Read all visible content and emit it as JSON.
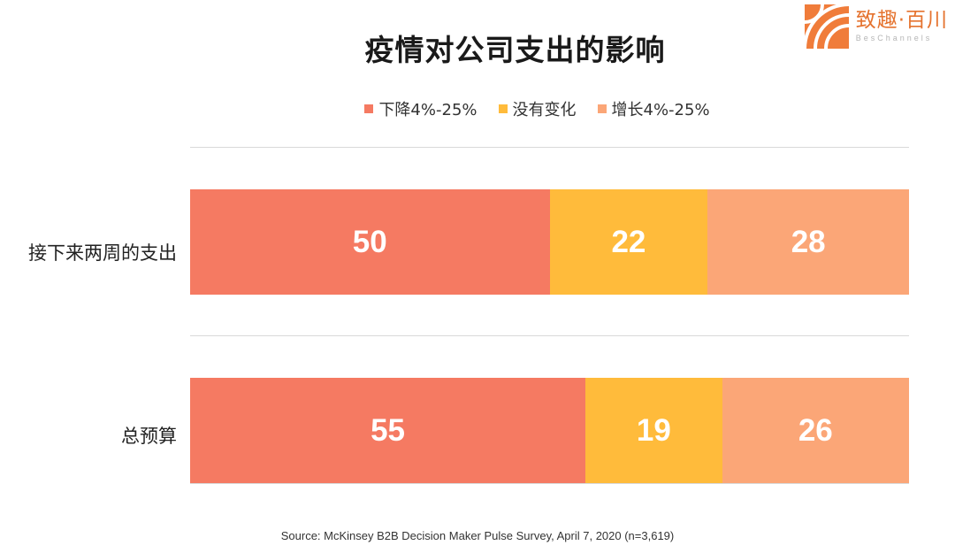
{
  "logo": {
    "text_cn": "致趣·百川",
    "text_en": "BesChannels",
    "color": "#f07c3a"
  },
  "chart_data": {
    "type": "bar",
    "orientation": "horizontal",
    "stacked": true,
    "title": "疫情对公司支出的影响",
    "categories": [
      "接下来两周的支出",
      "总预算"
    ],
    "series": [
      {
        "name": "下降4%-25%",
        "values": [
          50,
          55
        ],
        "color": "#f57a62"
      },
      {
        "name": "没有变化",
        "values": [
          22,
          19
        ],
        "color": "#ffbb3b"
      },
      {
        "name": "增长4%-25%",
        "values": [
          28,
          26
        ],
        "color": "#fba677"
      }
    ],
    "data_labels": true,
    "legend_position": "top",
    "grid": "horizontal separators",
    "xlim": [
      0,
      100
    ]
  },
  "source": "Source: McKinsey B2B Decision Maker Pulse Survey, April 7, 2020 (n=3,619)"
}
